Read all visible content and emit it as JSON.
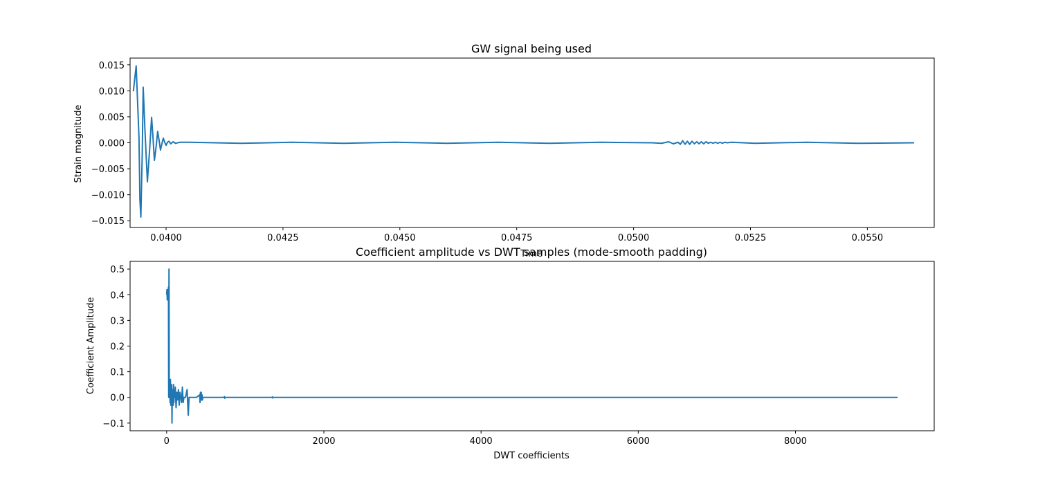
{
  "chart_data": [
    {
      "type": "line",
      "title": "GW signal being used",
      "xlabel": "Time",
      "ylabel": "Strain magnitude",
      "xlim": [
        0.03923,
        0.05643
      ],
      "ylim": [
        -0.0163,
        0.0163
      ],
      "xticks": [
        0.04,
        0.0425,
        0.045,
        0.0475,
        0.05,
        0.0525,
        0.055
      ],
      "xtick_labels": [
        "0.0400",
        "0.0425",
        "0.0450",
        "0.0475",
        "0.0500",
        "0.0525",
        "0.0550"
      ],
      "yticks": [
        -0.015,
        -0.01,
        -0.005,
        0.0,
        0.005,
        0.01,
        0.015
      ],
      "ytick_labels": [
        "−0.015",
        "−0.010",
        "−0.005",
        "0.000",
        "0.005",
        "0.010",
        "0.015"
      ],
      "grid": false,
      "color": "#1f77b4",
      "series": [
        {
          "x": [
            0.0393,
            0.03936,
            0.03942,
            0.03944,
            0.03946,
            0.03949,
            0.03951,
            0.03955,
            0.0396,
            0.03965,
            0.03969,
            0.03972,
            0.03975,
            0.03979,
            0.03982,
            0.03985,
            0.03988,
            0.03991,
            0.03994,
            0.03997,
            0.04,
            0.04003,
            0.04006,
            0.0401,
            0.04015,
            0.0402,
            0.0403,
            0.0405,
            0.0416,
            0.0427,
            0.0438,
            0.0449,
            0.046,
            0.0471,
            0.0482,
            0.0493,
            0.0504,
            0.0506,
            0.05075,
            0.05085,
            0.05095,
            0.051,
            0.05105,
            0.0511,
            0.05115,
            0.0512,
            0.05125,
            0.0513,
            0.05135,
            0.0514,
            0.05145,
            0.0515,
            0.05155,
            0.0516,
            0.05165,
            0.0517,
            0.05175,
            0.0518,
            0.05185,
            0.0519,
            0.05195,
            0.052,
            0.0521,
            0.0526,
            0.0537,
            0.0548,
            0.056
          ],
          "y": [
            0.0099,
            0.0148,
            0.001,
            -0.011,
            -0.0143,
            -0.002,
            0.0107,
            0.002,
            -0.0075,
            -0.001,
            0.0049,
            0.001,
            -0.0034,
            -0.0005,
            0.0022,
            0.0005,
            -0.0014,
            -0.0002,
            0.0009,
            0.0001,
            -0.0005,
            0.0001,
            0.0003,
            -0.0002,
            0.0002,
            -0.0001,
            0.0001,
            0.0001,
            -0.0001,
            0.0001,
            -0.0001,
            0.0001,
            -0.0001,
            0.0001,
            -0.0001,
            0.0001,
            0.0,
            -0.0001,
            0.0002,
            -0.0002,
            0.0001,
            -0.0003,
            0.0004,
            -0.0003,
            0.0003,
            -0.0003,
            0.0003,
            -0.0002,
            0.0002,
            -0.0002,
            0.0002,
            -0.0002,
            0.0002,
            -0.0001,
            0.0001,
            -0.0001,
            0.0001,
            -0.0001,
            0.0001,
            -0.0001,
            0.0001,
            0.0,
            0.0001,
            -0.0001,
            0.0001,
            -0.0001,
            0.0
          ]
        }
      ]
    },
    {
      "type": "line",
      "title": "Coefficient amplitude vs DWT samples (mode-smooth padding)",
      "xlabel": "DWT coefficients",
      "ylabel": "Coefficient Amplitude",
      "xlim": [
        -465,
        9765
      ],
      "ylim": [
        -0.13,
        0.53
      ],
      "xticks": [
        0,
        2000,
        4000,
        6000,
        8000
      ],
      "xtick_labels": [
        "0",
        "2000",
        "4000",
        "6000",
        "8000"
      ],
      "yticks": [
        -0.1,
        0.0,
        0.1,
        0.2,
        0.3,
        0.4,
        0.5
      ],
      "ytick_labels": [
        "−0.1",
        "0.0",
        "0.1",
        "0.2",
        "0.3",
        "0.4",
        "0.5"
      ],
      "grid": false,
      "color": "#1f77b4",
      "series": [
        {
          "x": [
            0,
            4,
            8,
            12,
            16,
            20,
            23,
            26,
            30,
            33,
            36,
            40,
            44,
            48,
            52,
            56,
            60,
            64,
            68,
            72,
            76,
            80,
            84,
            88,
            92,
            96,
            100,
            110,
            120,
            130,
            140,
            150,
            160,
            170,
            180,
            190,
            200,
            210,
            220,
            240,
            260,
            275,
            285,
            300,
            340,
            380,
            420,
            425,
            430,
            435,
            440,
            445,
            450,
            455,
            460,
            480,
            560,
            650,
            730,
            735,
            740,
            750,
            900,
            1100,
            1340,
            1345,
            1350,
            1360,
            2000,
            3000,
            4000,
            5000,
            6000,
            7000,
            8000,
            9000,
            9300
          ],
          "y": [
            0.4,
            0.42,
            0.38,
            0.42,
            0.39,
            0.41,
            0.43,
            0.0,
            0.5,
            0.05,
            0.0,
            0.03,
            -0.02,
            0.07,
            -0.03,
            0.02,
            -0.02,
            0.05,
            -0.1,
            0.03,
            -0.01,
            0.02,
            -0.03,
            0.05,
            -0.02,
            0.01,
            0.0,
            0.04,
            -0.04,
            0.02,
            -0.01,
            0.03,
            -0.03,
            0.02,
            0.0,
            -0.02,
            0.04,
            -0.02,
            0.0,
            0.0,
            0.03,
            -0.07,
            0.0,
            0.0,
            0.0,
            0.0,
            0.01,
            -0.02,
            0.02,
            -0.01,
            0.02,
            -0.01,
            0.01,
            -0.01,
            0.0,
            0.0,
            0.0,
            0.0,
            0.0,
            0.003,
            -0.003,
            0.0,
            0.0,
            0.0,
            0.0,
            0.002,
            -0.002,
            0.0,
            0.0,
            0.0,
            0.0,
            0.0,
            0.0,
            0.0,
            0.0,
            0.0,
            0.0
          ]
        }
      ]
    }
  ]
}
